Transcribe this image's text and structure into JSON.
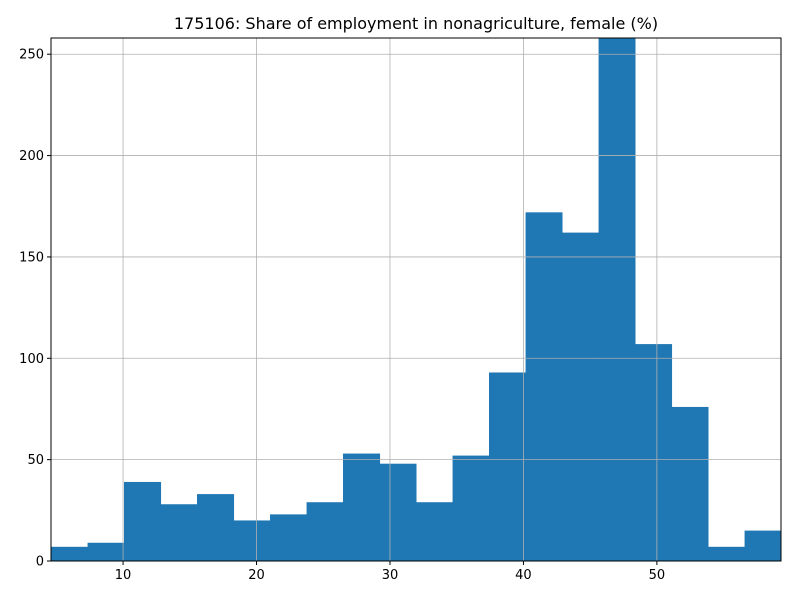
{
  "chart_data": {
    "type": "histogram",
    "title": "175106: Share of employment in nonagriculture, female (%)",
    "xlabel": "",
    "ylabel": "",
    "xlim": [
      4.6,
      59.3
    ],
    "ylim": [
      0,
      258
    ],
    "grid": true,
    "bar_color": "#1f77b4",
    "x_ticks": [
      10,
      20,
      30,
      40,
      50
    ],
    "y_ticks": [
      0,
      50,
      100,
      150,
      200,
      250
    ],
    "bins": [
      {
        "start": 4.6,
        "end": 7.34,
        "count": 7
      },
      {
        "start": 7.34,
        "end": 10.07,
        "count": 9
      },
      {
        "start": 10.07,
        "end": 12.81,
        "count": 39
      },
      {
        "start": 12.81,
        "end": 15.54,
        "count": 28
      },
      {
        "start": 15.54,
        "end": 18.28,
        "count": 33
      },
      {
        "start": 18.28,
        "end": 21.01,
        "count": 20
      },
      {
        "start": 21.01,
        "end": 23.75,
        "count": 23
      },
      {
        "start": 23.75,
        "end": 26.48,
        "count": 29
      },
      {
        "start": 26.48,
        "end": 29.22,
        "count": 53
      },
      {
        "start": 29.22,
        "end": 31.95,
        "count": 48
      },
      {
        "start": 31.95,
        "end": 34.69,
        "count": 29
      },
      {
        "start": 34.69,
        "end": 37.42,
        "count": 52
      },
      {
        "start": 37.42,
        "end": 40.16,
        "count": 93
      },
      {
        "start": 40.16,
        "end": 42.89,
        "count": 172
      },
      {
        "start": 42.89,
        "end": 45.63,
        "count": 162
      },
      {
        "start": 45.63,
        "end": 48.36,
        "count": 258
      },
      {
        "start": 48.36,
        "end": 51.1,
        "count": 107
      },
      {
        "start": 51.1,
        "end": 53.83,
        "count": 76
      },
      {
        "start": 53.83,
        "end": 56.57,
        "count": 7
      },
      {
        "start": 56.57,
        "end": 59.3,
        "count": 15
      }
    ]
  }
}
